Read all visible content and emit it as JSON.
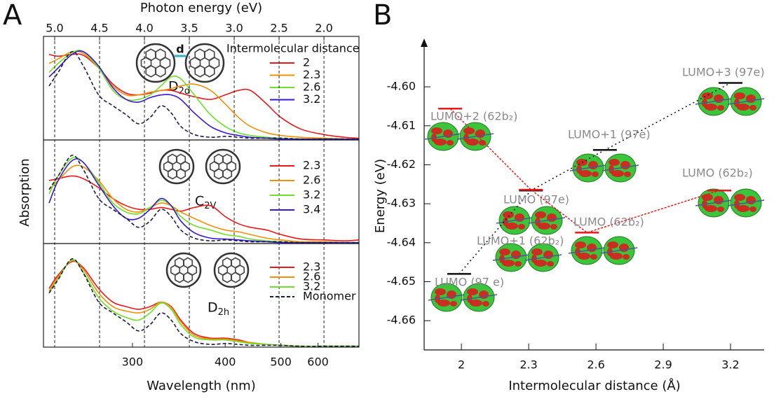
{
  "chart_data": [
    {
      "type": "line",
      "panel_label": "A",
      "x2label": "Photon energy (eV)",
      "x2lim": [
        5.125,
        1.61
      ],
      "x2ticks": [
        {
          "value": 5.0,
          "label": "5.0"
        },
        4.5,
        {
          "value": 4.0,
          "label": "4.0"
        },
        3.5,
        {
          "value": 3.0,
          "label": "3.0"
        },
        2.5,
        {
          "value": 2.0,
          "label": "2.0"
        }
      ],
      "x2grid": true,
      "xlim": [
        242,
        770
      ],
      "xscale": "reciprocal",
      "ylim": [
        0,
        1.15
      ],
      "legend": "upper right",
      "legend_title": "Intermolecular distance",
      "symmetry": "D2d",
      "distance_symbol": "d",
      "x": [
        245,
        250,
        258,
        265,
        275,
        285,
        295,
        305,
        315,
        325,
        335,
        345,
        360,
        380,
        400,
        420,
        440,
        470,
        500,
        550,
        620,
        700,
        770
      ],
      "series": [
        {
          "name": "2",
          "color": "#e8191a",
          "values": [
            0.95,
            0.93,
            0.95,
            0.94,
            0.8,
            0.62,
            0.52,
            0.5,
            0.52,
            0.55,
            0.55,
            0.52,
            0.48,
            0.45,
            0.5,
            0.55,
            0.55,
            0.4,
            0.25,
            0.12,
            0.06,
            0.03,
            0.02
          ]
        },
        {
          "name": "2.3",
          "color": "#f0900a",
          "values": [
            0.85,
            0.9,
            0.98,
            0.96,
            0.8,
            0.6,
            0.5,
            0.5,
            0.53,
            0.55,
            0.57,
            0.6,
            0.62,
            0.55,
            0.4,
            0.25,
            0.15,
            0.08,
            0.05,
            0.03,
            0.02,
            0.01,
            0.01
          ]
        },
        {
          "name": "2.6",
          "color": "#6ee028",
          "values": [
            0.75,
            0.85,
            0.97,
            0.98,
            0.8,
            0.55,
            0.45,
            0.45,
            0.5,
            0.6,
            0.7,
            0.68,
            0.5,
            0.28,
            0.15,
            0.08,
            0.05,
            0.03,
            0.02,
            0.01,
            0.01,
            0.01,
            0.01
          ]
        },
        {
          "name": "3.2",
          "color": "#3a16d6",
          "values": [
            0.7,
            0.8,
            0.95,
            0.98,
            0.82,
            0.58,
            0.45,
            0.42,
            0.47,
            0.5,
            0.5,
            0.45,
            0.3,
            0.15,
            0.08,
            0.05,
            0.03,
            0.02,
            0.01,
            0.01,
            0.01,
            0.01,
            0.01
          ]
        },
        {
          "color": "#1a1a4a",
          "dashed": true,
          "values": [
            0.6,
            0.75,
            0.98,
            0.82,
            0.5,
            0.38,
            0.28,
            0.18,
            0.25,
            0.38,
            0.3,
            0.15,
            0.06,
            0.03,
            0.04,
            0.03,
            0.02,
            0.02,
            0.02,
            0.01,
            0.01,
            0.01,
            0.01
          ]
        }
      ]
    },
    {
      "type": "line",
      "ylabel": "Absorption",
      "xlim": [
        242,
        770
      ],
      "xscale": "reciprocal",
      "ylim": [
        0,
        1.15
      ],
      "legend": "upper right",
      "symmetry": "C2V",
      "x": [
        245,
        250,
        258,
        265,
        275,
        285,
        295,
        305,
        315,
        325,
        335,
        345,
        360,
        380,
        400,
        420,
        440,
        470,
        500,
        550,
        620,
        700,
        770
      ],
      "series": [
        {
          "name": "2.3",
          "color": "#e8191a",
          "values": [
            0.7,
            0.72,
            0.75,
            0.72,
            0.62,
            0.5,
            0.42,
            0.38,
            0.38,
            0.4,
            0.38,
            0.36,
            0.4,
            0.42,
            0.3,
            0.22,
            0.18,
            0.15,
            0.1,
            0.05,
            0.04,
            0.03,
            0.04
          ]
        },
        {
          "name": "2.6",
          "color": "#f0900a",
          "values": [
            0.6,
            0.7,
            0.85,
            0.85,
            0.7,
            0.5,
            0.38,
            0.35,
            0.4,
            0.45,
            0.42,
            0.35,
            0.28,
            0.2,
            0.15,
            0.13,
            0.1,
            0.06,
            0.04,
            0.02,
            0.02,
            0.01,
            0.01
          ]
        },
        {
          "name": "3.2",
          "color": "#6ee028",
          "values": [
            0.55,
            0.75,
            0.95,
            0.9,
            0.68,
            0.45,
            0.35,
            0.33,
            0.4,
            0.48,
            0.42,
            0.3,
            0.2,
            0.15,
            0.1,
            0.08,
            0.05,
            0.03,
            0.02,
            0.01,
            0.01,
            0.01,
            0.01
          ]
        },
        {
          "name": "3.4",
          "color": "#3a16d6",
          "values": [
            0.45,
            0.7,
            0.92,
            0.9,
            0.65,
            0.42,
            0.28,
            0.28,
            0.38,
            0.5,
            0.42,
            0.25,
            0.12,
            0.06,
            0.05,
            0.04,
            0.03,
            0.02,
            0.01,
            0.01,
            0.01,
            0.01,
            0.01
          ]
        },
        {
          "color": "#1a1a4a",
          "dashed": true,
          "values": [
            0.6,
            0.75,
            0.98,
            0.82,
            0.5,
            0.38,
            0.28,
            0.18,
            0.25,
            0.38,
            0.3,
            0.15,
            0.06,
            0.03,
            0.04,
            0.03,
            0.02,
            0.02,
            0.02,
            0.01,
            0.01,
            0.01,
            0.01
          ]
        }
      ]
    },
    {
      "type": "line",
      "xlabel": "Wavelength (nm)",
      "xlim": [
        242,
        770
      ],
      "xscale": "reciprocal",
      "xticks": [
        300,
        400,
        500,
        600
      ],
      "ylim": [
        0,
        1.15
      ],
      "legend": "upper right",
      "symmetry": "D2h",
      "x": [
        245,
        250,
        258,
        265,
        275,
        285,
        295,
        305,
        315,
        325,
        335,
        345,
        360,
        380,
        400,
        420,
        440,
        470,
        500,
        550,
        620,
        700,
        770
      ],
      "series": [
        {
          "name": "2.3",
          "color": "#e8191a",
          "values": [
            0.65,
            0.8,
            0.95,
            0.88,
            0.65,
            0.5,
            0.45,
            0.42,
            0.45,
            0.5,
            0.45,
            0.3,
            0.15,
            0.1,
            0.1,
            0.08,
            0.05,
            0.03,
            0.02,
            0.01,
            0.01,
            0.01,
            0.01
          ]
        },
        {
          "name": "2.6",
          "color": "#f0900a",
          "values": [
            0.62,
            0.78,
            0.96,
            0.86,
            0.6,
            0.45,
            0.4,
            0.38,
            0.42,
            0.5,
            0.44,
            0.28,
            0.13,
            0.09,
            0.09,
            0.07,
            0.05,
            0.03,
            0.02,
            0.01,
            0.01,
            0.01,
            0.01
          ]
        },
        {
          "name": "3.2",
          "color": "#6ee028",
          "values": [
            0.6,
            0.76,
            0.97,
            0.83,
            0.55,
            0.4,
            0.33,
            0.3,
            0.38,
            0.49,
            0.42,
            0.25,
            0.11,
            0.08,
            0.08,
            0.06,
            0.04,
            0.03,
            0.02,
            0.01,
            0.01,
            0.01,
            0.01
          ]
        },
        {
          "name": "Monomer",
          "color": "#1a1a4a",
          "dashed": true,
          "values": [
            0.6,
            0.75,
            0.98,
            0.82,
            0.5,
            0.38,
            0.28,
            0.18,
            0.25,
            0.38,
            0.3,
            0.15,
            0.06,
            0.03,
            0.04,
            0.03,
            0.02,
            0.02,
            0.02,
            0.01,
            0.01,
            0.01,
            0.01
          ]
        }
      ]
    },
    {
      "type": "levels",
      "panel_label": "B",
      "xlabel": "Intermolecular distance (Å)",
      "ylabel": "Energy (eV)",
      "xlim": [
        1.834,
        3.35
      ],
      "xticks": [
        2,
        2.3,
        2.6,
        2.9,
        3.2
      ],
      "ylim": [
        -4.6675,
        -4.5876
      ],
      "yticks": [
        {
          "value": -4.6,
          "label": "-4.60"
        },
        -4.61,
        -4.62,
        -4.63,
        -4.64,
        -4.65,
        -4.66
      ],
      "series": [
        {
          "color": "#111111",
          "x": [
            1.99,
            2.31,
            2.64,
            3.2
          ],
          "values": [
            -4.648,
            -4.6266,
            -4.6162,
            -4.599
          ],
          "labels": [
            "LUMO (97 e)",
            "LUMO (97e)",
            "LUMO+1 (97e)",
            "LUMO+3 (97e)"
          ]
        },
        {
          "color": "#e8191a",
          "x": [
            1.95,
            2.31,
            2.56,
            3.15
          ],
          "values": [
            -4.6056,
            -4.6264,
            -4.6374,
            -4.6266
          ],
          "labels": [
            "LUMO+2 (62b₂)",
            "LUMO+1 (62b₂)",
            "LUMO (62b₂)",
            "LUMO (62b₂)"
          ]
        }
      ]
    }
  ]
}
